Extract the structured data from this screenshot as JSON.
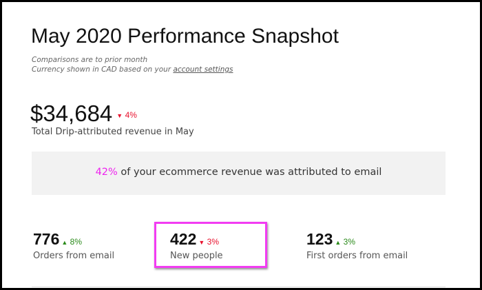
{
  "title": "May 2020 Performance Snapshot",
  "subtitle": {
    "line1": "Comparisons are to prior month",
    "line2_prefix": "Currency shown in CAD based on your ",
    "line2_link": "account settings"
  },
  "revenue": {
    "value": "$34,684",
    "change": "4%",
    "direction": "down",
    "label": "Total Drip-attributed revenue in May"
  },
  "banner": {
    "highlight": "42%",
    "text": " of your ecommerce revenue was attributed to email"
  },
  "stats": [
    {
      "value": "776",
      "change": "8%",
      "direction": "up",
      "label": "Orders from email"
    },
    {
      "value": "422",
      "change": "3%",
      "direction": "down",
      "label": "New people",
      "highlighted": true
    },
    {
      "value": "123",
      "change": "3%",
      "direction": "up",
      "label": "First orders from email"
    }
  ],
  "colors": {
    "down": "#e8112d",
    "up": "#2a8a1a",
    "highlight": "#ee22ee",
    "banner_bg": "#f2f2f2"
  },
  "icons": {
    "down": "▼",
    "up": "▲"
  }
}
